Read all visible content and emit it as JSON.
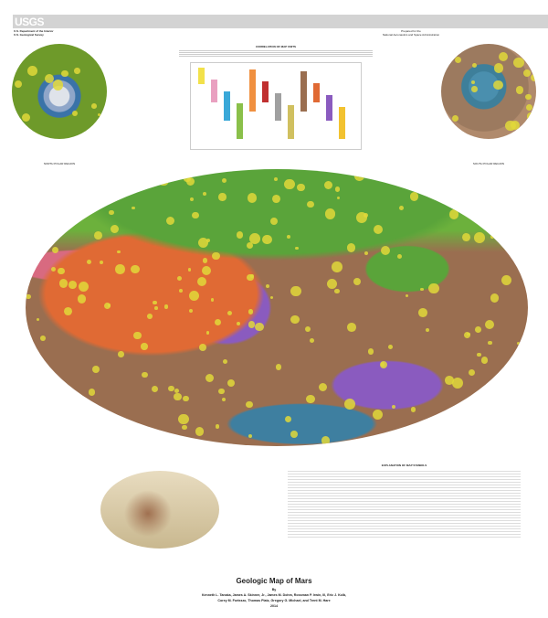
{
  "header": {
    "logo": "USGS",
    "agency_line1": "U.S. Department of the Interior",
    "agency_line2": "U.S. Geological Survey",
    "prepared_line1": "Prepared for the",
    "prepared_line2": "National Aeronautics and Space Administration"
  },
  "correlation": {
    "title": "CORRELATION OF MAP UNITS",
    "colors": [
      "#f2e14a",
      "#e9a0c0",
      "#3aa8d8",
      "#8ac04a",
      "#f09040",
      "#c03030",
      "#a0a0a0",
      "#d0c060",
      "#9a6e50",
      "#e06a34",
      "#8a5bbf",
      "#f2c230"
    ]
  },
  "polar": {
    "north_label": "NORTH POLAR REGION",
    "south_label": "SOUTH POLAR REGION"
  },
  "explanation": {
    "title": "EXPLANATION OF MAP SYMBOLS"
  },
  "title": {
    "main": "Geologic Map of Mars",
    "by": "By",
    "authors_line1": "Kenneth L. Tanaka, James A. Skinner, Jr., James M. Dohm, Rossman P. Irwin, III, Eric J. Kolb,",
    "authors_line2": "Corey M. Fortezzo, Thomas Platz, Gregory G. Michael, and Trent M. Hare",
    "year": "2014"
  }
}
